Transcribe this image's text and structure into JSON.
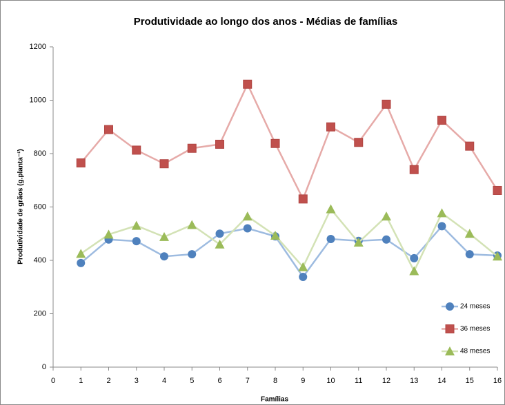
{
  "chart_data": {
    "type": "line",
    "title": "Produtividade ao longo dos anos - Médias de famílias",
    "x_label": "Famílias",
    "y_label": "Produtividade de grãos (g.planta⁻¹)",
    "x": [
      1,
      2,
      3,
      4,
      5,
      6,
      7,
      8,
      9,
      10,
      11,
      12,
      13,
      14,
      15,
      16
    ],
    "series": [
      {
        "name": "24 meses",
        "color": "#4f81bd",
        "line_color": "#9dbbe0",
        "marker": "circle",
        "values": [
          390,
          478,
          472,
          415,
          423,
          500,
          520,
          490,
          338,
          480,
          473,
          478,
          408,
          528,
          423,
          418
        ]
      },
      {
        "name": "36 meses",
        "color": "#c0504d",
        "line_color": "#e6aaa8",
        "marker": "square",
        "values": [
          765,
          890,
          813,
          762,
          820,
          835,
          1060,
          838,
          630,
          900,
          842,
          985,
          740,
          925,
          828,
          662
        ]
      },
      {
        "name": "48 meses",
        "color": "#9bbb59",
        "line_color": "#d3e2b5",
        "marker": "triangle",
        "values": [
          425,
          497,
          530,
          488,
          533,
          460,
          565,
          493,
          375,
          592,
          467,
          565,
          360,
          577,
          500,
          415
        ]
      }
    ],
    "xlim": [
      0,
      16
    ],
    "xticks": [
      0,
      1,
      2,
      3,
      4,
      5,
      6,
      7,
      8,
      9,
      10,
      11,
      12,
      13,
      14,
      15,
      16
    ],
    "ylim": [
      0,
      1200
    ],
    "yticks": [
      0,
      200,
      400,
      600,
      800,
      1000,
      1200
    ],
    "grid": false,
    "legend": "lower right"
  }
}
